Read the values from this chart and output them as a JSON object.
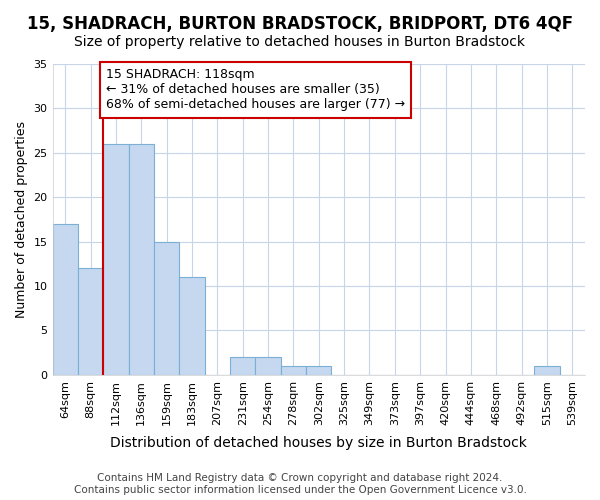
{
  "title": "15, SHADRACH, BURTON BRADSTOCK, BRIDPORT, DT6 4QF",
  "subtitle": "Size of property relative to detached houses in Burton Bradstock",
  "xlabel": "Distribution of detached houses by size in Burton Bradstock",
  "ylabel": "Number of detached properties",
  "categories": [
    "64sqm",
    "88sqm",
    "112sqm",
    "136sqm",
    "159sqm",
    "183sqm",
    "207sqm",
    "231sqm",
    "254sqm",
    "278sqm",
    "302sqm",
    "325sqm",
    "349sqm",
    "373sqm",
    "397sqm",
    "420sqm",
    "444sqm",
    "468sqm",
    "492sqm",
    "515sqm",
    "539sqm"
  ],
  "values": [
    17,
    12,
    26,
    26,
    15,
    11,
    0,
    2,
    2,
    1,
    1,
    0,
    0,
    0,
    0,
    0,
    0,
    0,
    0,
    1,
    0
  ],
  "bar_color": "#c5d8f0",
  "bar_edge_color": "#7bafd4",
  "line_color": "#cc0000",
  "line_x_index": 2,
  "annotation_text": "15 SHADRACH: 118sqm\n← 31% of detached houses are smaller (35)\n68% of semi-detached houses are larger (77) →",
  "annotation_box_color": "#ffffff",
  "annotation_box_edge": "#cc0000",
  "ylim": [
    0,
    35
  ],
  "yticks": [
    0,
    5,
    10,
    15,
    20,
    25,
    30,
    35
  ],
  "background_color": "#ffffff",
  "plot_bg_color": "#ffffff",
  "grid_color": "#c8d4e8",
  "footer": "Contains HM Land Registry data © Crown copyright and database right 2024.\nContains public sector information licensed under the Open Government Licence v3.0.",
  "title_fontsize": 12,
  "subtitle_fontsize": 10,
  "xlabel_fontsize": 10,
  "ylabel_fontsize": 9,
  "tick_fontsize": 8,
  "annotation_fontsize": 9,
  "footer_fontsize": 7.5
}
